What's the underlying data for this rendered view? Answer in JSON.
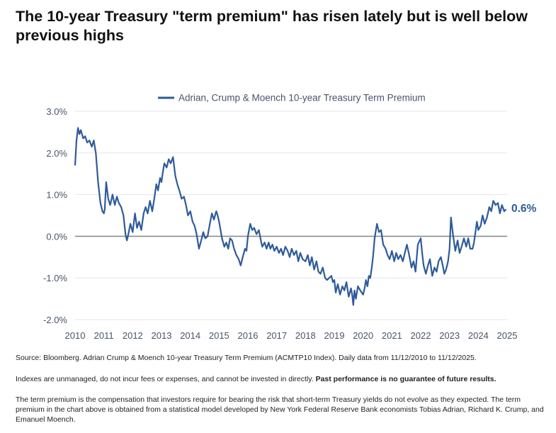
{
  "headline": "The 10-year Treasury \"term premium\" has risen lately but is well below previous highs",
  "notes": {
    "source": "Source: Bloomberg. Adrian Crump & Moench 10-year Treasury Term Premium (ACMTP10 Index). Daily data from 11/12/2010 to 11/12/2025.",
    "disclaimer": "Indexes are unmanaged, do not incur fees or expenses, and cannot be invested in directly.",
    "disclaimer_bold": "Past performance is no guarantee of future results.",
    "term_premium": "The term premium is the compensation that investors require for bearing the risk that short-term Treasury yields do not evolve as they expected. The term premium in the chart above is obtained from a statistical model developed by New York Federal Reserve Bank economists Tobias Adrian, Richard K. Crump, and Emanuel Moench."
  },
  "colors": {
    "line": "#2e5b9a",
    "grid": "#e3e6ea",
    "zero": "#8c8c8c",
    "text": "#4a5468"
  },
  "chart_data": {
    "type": "line",
    "title": "",
    "xlabel": "",
    "ylabel": "",
    "legend": "top-center",
    "grid": true,
    "xlim": [
      2010,
      2025
    ],
    "ylim": [
      -2.0,
      3.0
    ],
    "x_ticks": [
      2010,
      2011,
      2012,
      2013,
      2014,
      2015,
      2016,
      2017,
      2018,
      2019,
      2020,
      2021,
      2022,
      2023,
      2024,
      2025
    ],
    "x_tick_labels": [
      "2010",
      "2011",
      "2012",
      "2013",
      "2014",
      "2015",
      "2016",
      "2017",
      "2018",
      "2019",
      "2020",
      "2021",
      "2022",
      "2023",
      "2024",
      "2025"
    ],
    "y_ticks": [
      3.0,
      2.0,
      1.0,
      0.0,
      -1.0,
      -2.0
    ],
    "y_tick_labels": [
      "3.0%",
      "2.0%",
      "1.0%",
      "0.0%",
      "-1.0%",
      "-2.0%"
    ],
    "end_label": "0.6%",
    "series": [
      {
        "name": "Adrian, Crump & Moench 10-year Treasury Term Premium",
        "x": [
          2010.0,
          2010.05,
          2010.1,
          2010.15,
          2010.2,
          2010.28,
          2010.35,
          2010.42,
          2010.5,
          2010.58,
          2010.65,
          2010.72,
          2010.8,
          2010.88,
          2010.95,
          2011.0,
          2011.03,
          2011.08,
          2011.15,
          2011.22,
          2011.3,
          2011.38,
          2011.45,
          2011.52,
          2011.6,
          2011.68,
          2011.75,
          2011.8,
          2011.85,
          2011.92,
          2012.0,
          2012.08,
          2012.15,
          2012.22,
          2012.3,
          2012.38,
          2012.45,
          2012.52,
          2012.6,
          2012.68,
          2012.75,
          2012.82,
          2012.88,
          2012.95,
          2013.0,
          2013.05,
          2013.1,
          2013.18,
          2013.25,
          2013.32,
          2013.4,
          2013.48,
          2013.55,
          2013.62,
          2013.7,
          2013.78,
          2013.85,
          2013.92,
          2014.0,
          2014.08,
          2014.15,
          2014.22,
          2014.3,
          2014.38,
          2014.45,
          2014.52,
          2014.6,
          2014.68,
          2014.75,
          2014.82,
          2014.9,
          2014.95,
          2015.0,
          2015.05,
          2015.1,
          2015.18,
          2015.25,
          2015.32,
          2015.38,
          2015.45,
          2015.52,
          2015.6,
          2015.68,
          2015.75,
          2015.82,
          2015.9,
          2015.95,
          2016.0,
          2016.08,
          2016.15,
          2016.22,
          2016.3,
          2016.38,
          2016.45,
          2016.5,
          2016.58,
          2016.65,
          2016.72,
          2016.78,
          2016.85,
          2016.92,
          2017.0,
          2017.08,
          2017.15,
          2017.22,
          2017.3,
          2017.38,
          2017.45,
          2017.52,
          2017.6,
          2017.68,
          2017.75,
          2017.82,
          2017.9,
          2018.0,
          2018.08,
          2018.15,
          2018.22,
          2018.3,
          2018.38,
          2018.45,
          2018.52,
          2018.6,
          2018.68,
          2018.75,
          2018.82,
          2018.9,
          2018.95,
          2019.0,
          2019.05,
          2019.12,
          2019.2,
          2019.28,
          2019.35,
          2019.42,
          2019.5,
          2019.58,
          2019.62,
          2019.66,
          2019.7,
          2019.75,
          2019.82,
          2019.9,
          2020.0,
          2020.05,
          2020.1,
          2020.15,
          2020.2,
          2020.25,
          2020.3,
          2020.35,
          2020.4,
          2020.48,
          2020.55,
          2020.62,
          2020.7,
          2020.78,
          2020.85,
          2020.92,
          2021.0,
          2021.08,
          2021.15,
          2021.22,
          2021.3,
          2021.38,
          2021.45,
          2021.52,
          2021.6,
          2021.68,
          2021.75,
          2021.82,
          2021.9,
          2022.0,
          2022.05,
          2022.1,
          2022.18,
          2022.25,
          2022.32,
          2022.4,
          2022.48,
          2022.55,
          2022.62,
          2022.7,
          2022.78,
          2022.82,
          2022.88,
          2022.95,
          2023.0,
          2023.05,
          2023.12,
          2023.2,
          2023.28,
          2023.35,
          2023.42,
          2023.5,
          2023.58,
          2023.65,
          2023.72,
          2023.8,
          2023.85,
          2023.9,
          2023.95,
          2024.0,
          2024.08,
          2024.15,
          2024.22,
          2024.3,
          2024.38,
          2024.45,
          2024.52,
          2024.6,
          2024.68,
          2024.75,
          2024.82,
          2024.9,
          2024.96
        ],
        "values": [
          1.7,
          2.3,
          2.6,
          2.45,
          2.55,
          2.35,
          2.4,
          2.25,
          2.3,
          2.15,
          2.3,
          2.0,
          1.3,
          0.8,
          0.6,
          0.55,
          0.65,
          1.3,
          0.9,
          0.75,
          1.0,
          0.75,
          0.95,
          0.8,
          0.7,
          0.5,
          0.05,
          -0.1,
          0.05,
          0.3,
          0.1,
          0.55,
          0.2,
          0.35,
          0.15,
          0.55,
          0.7,
          0.55,
          0.85,
          0.6,
          0.9,
          1.25,
          1.1,
          1.4,
          1.3,
          1.55,
          1.75,
          1.65,
          1.85,
          1.75,
          1.9,
          1.45,
          1.25,
          1.1,
          0.9,
          0.95,
          0.75,
          0.5,
          0.6,
          0.35,
          0.25,
          0.05,
          -0.3,
          -0.1,
          0.1,
          -0.05,
          0.0,
          0.3,
          0.55,
          0.4,
          0.6,
          0.5,
          0.35,
          0.15,
          -0.05,
          -0.25,
          -0.15,
          -0.3,
          -0.05,
          -0.1,
          -0.3,
          -0.45,
          -0.55,
          -0.7,
          -0.5,
          -0.3,
          -0.35,
          0.0,
          0.3,
          0.15,
          0.2,
          0.05,
          0.15,
          -0.1,
          -0.25,
          -0.15,
          -0.3,
          -0.15,
          -0.3,
          -0.2,
          -0.35,
          -0.25,
          -0.4,
          -0.3,
          -0.45,
          -0.25,
          -0.35,
          -0.5,
          -0.3,
          -0.45,
          -0.35,
          -0.6,
          -0.4,
          -0.55,
          -0.6,
          -0.45,
          -0.7,
          -0.5,
          -0.8,
          -0.6,
          -0.85,
          -0.9,
          -0.75,
          -1.0,
          -1.05,
          -1.0,
          -0.95,
          -1.1,
          -1.05,
          -1.35,
          -1.15,
          -1.4,
          -1.2,
          -1.3,
          -1.1,
          -1.45,
          -1.25,
          -1.4,
          -1.65,
          -1.3,
          -1.5,
          -1.2,
          -1.3,
          -1.4,
          -1.25,
          -1.05,
          -1.2,
          -0.95,
          -1.0,
          -0.75,
          -0.45,
          -0.05,
          0.3,
          0.1,
          0.15,
          -0.2,
          -0.3,
          -0.45,
          -0.55,
          -0.35,
          -0.6,
          -0.4,
          -0.55,
          -0.45,
          -0.6,
          -0.4,
          -0.2,
          -0.45,
          -0.75,
          -0.6,
          -0.85,
          -0.2,
          -0.05,
          -0.4,
          -0.7,
          -0.9,
          -0.7,
          -0.55,
          -0.95,
          -0.75,
          -0.85,
          -0.6,
          -0.5,
          -0.75,
          -0.9,
          -0.8,
          -0.6,
          -0.3,
          0.45,
          0.05,
          -0.35,
          -0.1,
          -0.4,
          -0.25,
          -0.05,
          -0.25,
          -0.05,
          -0.3,
          -0.3,
          -0.15,
          0.1,
          0.35,
          0.15,
          0.25,
          0.5,
          0.3,
          0.45,
          0.7,
          0.6,
          0.85,
          0.75,
          0.8,
          0.55,
          0.75,
          0.6,
          0.65
        ]
      }
    ]
  }
}
